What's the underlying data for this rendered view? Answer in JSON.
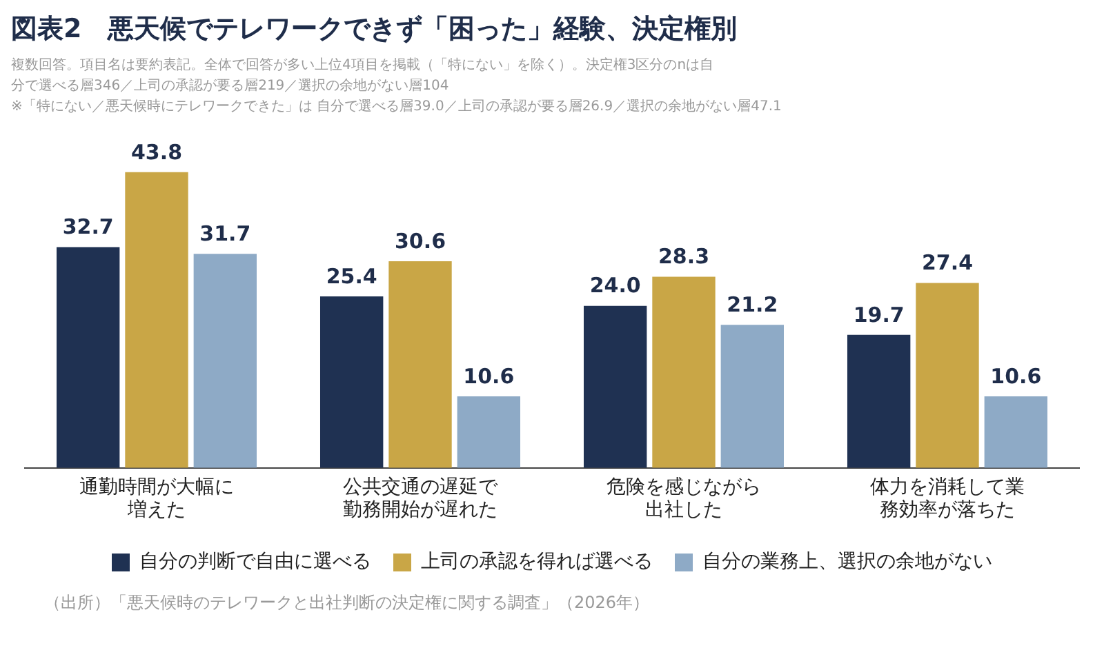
{
  "chart_data": {
    "type": "bar",
    "title": "図表2　悪天候でテレワークできず「困った」経験、決定権別",
    "subtitle": "複数回答。項目名は要約表記。全体で回答が多い上位4項目を掲載（「特にない」を除く）。決定権3区分のnは自分で選べる層346／上司の承認が要る層219／選択の余地がない層104\n※「特にない／悪天候時にテレワークできた」は 自分で選べる層39.0／上司の承認が要る層26.9／選択の余地がない層47.1",
    "categories": [
      "通勤時間が大幅に増えた",
      "公共交通の遅延で勤務開始が遅れた",
      "危険を感じながら出社した",
      "体力を消耗して業務効率が落ちた"
    ],
    "series": [
      {
        "name": "自分の判断で自由に選べる",
        "color": "#1f3152",
        "values": [
          32.7,
          25.4,
          24.0,
          19.7
        ],
        "value_labels": [
          "32.7",
          "25.4",
          "24.0",
          "19.7"
        ]
      },
      {
        "name": "上司の承認を得れば選べる",
        "color": "#c9a646",
        "values": [
          43.8,
          30.6,
          28.3,
          27.4
        ],
        "value_labels": [
          "43.8",
          "30.6",
          "28.3",
          "27.4"
        ]
      },
      {
        "name": "自分の業務上、選択の余地がない",
        "color": "#8eaac6",
        "values": [
          31.7,
          10.6,
          21.2,
          10.6
        ],
        "value_labels": [
          "31.7",
          "10.6",
          "21.2",
          "10.6"
        ]
      }
    ],
    "legend": "bottom",
    "grid": false,
    "annotations": [
      "（出所）「悪天候時のテレワークと出社判断の決定権に関する調査」（2026年）"
    ]
  }
}
